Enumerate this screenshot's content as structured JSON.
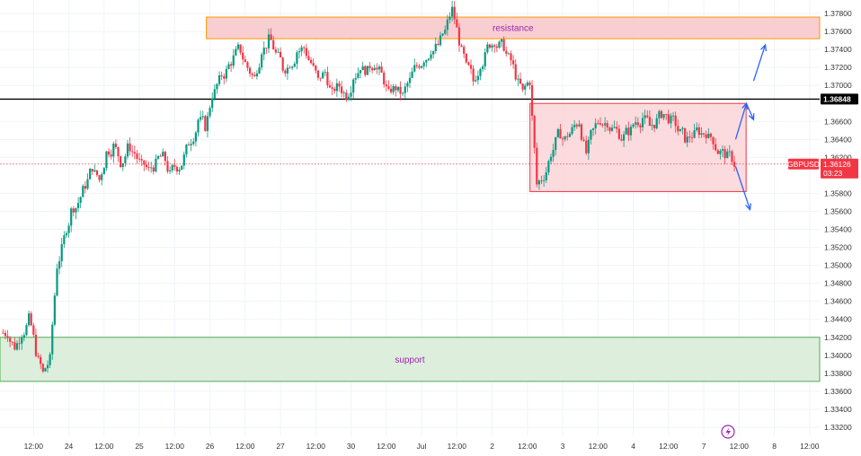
{
  "chart_data": {
    "type": "candlestick",
    "symbol": "GBPUSD",
    "last_price": "1.36126",
    "countdown": "03:23",
    "colors": {
      "up": "#089981",
      "down": "#f23645",
      "resistance_fill": "#f7c9cc",
      "resistance_border": "#ff9800",
      "support_fill": "#d9ecd9",
      "support_border": "#4caf50",
      "range_fill": "#fbd5d8",
      "range_border": "#f23645",
      "level_line": "#000000",
      "arrows": "#2962ff",
      "zone_label": "#9c27b0"
    },
    "ylim": [
      1.331,
      1.3795
    ],
    "y_ticks": [
      "1.37800",
      "1.37600",
      "1.37400",
      "1.37200",
      "1.37000",
      "1.36848",
      "1.36600",
      "1.36400",
      "1.36200",
      "1.36126",
      "1.35800",
      "1.35600",
      "1.35400",
      "1.35200",
      "1.35000",
      "1.34800",
      "1.34600",
      "1.34400",
      "1.34200",
      "1.34000",
      "1.33800",
      "1.33600",
      "1.33400",
      "1.33200"
    ],
    "y_tick_values": [
      1.378,
      1.376,
      1.374,
      1.372,
      1.37,
      1.36848,
      1.366,
      1.364,
      1.362,
      1.36126,
      1.358,
      1.356,
      1.354,
      1.352,
      1.35,
      1.348,
      1.346,
      1.344,
      1.342,
      1.34,
      1.338,
      1.336,
      1.334,
      1.332
    ],
    "x_tick_labels": [
      "12:00",
      "24",
      "12:00",
      "25",
      "12:00",
      "26",
      "12:00",
      "27",
      "12:00",
      "30",
      "12:00",
      "Jul",
      "12:00",
      "2",
      "12:00",
      "3",
      "12:00",
      "4",
      "12:00",
      "7",
      "12:00",
      "8",
      "12:00"
    ],
    "x_tick_index": [
      4,
      9,
      14,
      19,
      24,
      29,
      34,
      39,
      44,
      49,
      54,
      59,
      64,
      69,
      74,
      79,
      84,
      89,
      94,
      99,
      104,
      109,
      114
    ],
    "key_level": {
      "label": "1.36848",
      "value": 1.36848
    },
    "resistance_zone": {
      "label": "resistance",
      "from": 1.3752,
      "to": 1.3776
    },
    "support_zone": {
      "label": "support",
      "from": 1.3371,
      "to": 1.342
    },
    "range_box": {
      "from": 1.3582,
      "to": 1.368,
      "start_index": 75,
      "end_index": 105
    },
    "close_prices": [
      1.3425,
      1.341,
      1.3425,
      1.344,
      1.3405,
      1.338,
      1.3395,
      1.35,
      1.353,
      1.356,
      1.357,
      1.359,
      1.361,
      1.3595,
      1.3625,
      1.3632,
      1.3615,
      1.363,
      1.3625,
      1.361,
      1.3605,
      1.3612,
      1.362,
      1.36,
      1.361,
      1.362,
      1.364,
      1.3662,
      1.3655,
      1.369,
      1.3705,
      1.3715,
      1.373,
      1.374,
      1.372,
      1.3708,
      1.374,
      1.375,
      1.3735,
      1.372,
      1.3725,
      1.3738,
      1.3742,
      1.3725,
      1.3705,
      1.3715,
      1.369,
      1.37,
      1.369,
      1.371,
      1.3722,
      1.3715,
      1.3725,
      1.3712,
      1.369,
      1.3698,
      1.3688,
      1.3705,
      1.3722,
      1.373,
      1.374,
      1.3745,
      1.376,
      1.3784,
      1.375,
      1.372,
      1.3705,
      1.3725,
      1.3742,
      1.375,
      1.3745,
      1.373,
      1.3712,
      1.3692,
      1.3705,
      1.359,
      1.36,
      1.3625,
      1.3645,
      1.364,
      1.365,
      1.366,
      1.3625,
      1.365,
      1.3662,
      1.366,
      1.3652,
      1.3642,
      1.365,
      1.366,
      1.3664,
      1.3655,
      1.366,
      1.3668,
      1.366,
      1.365,
      1.3642,
      1.3645,
      1.365,
      1.3648,
      1.364,
      1.3625,
      1.362,
      1.3613
    ],
    "ohlc_amplitude": 0.0015
  },
  "toolbar": {
    "lightning_icon": "lightning-icon"
  }
}
